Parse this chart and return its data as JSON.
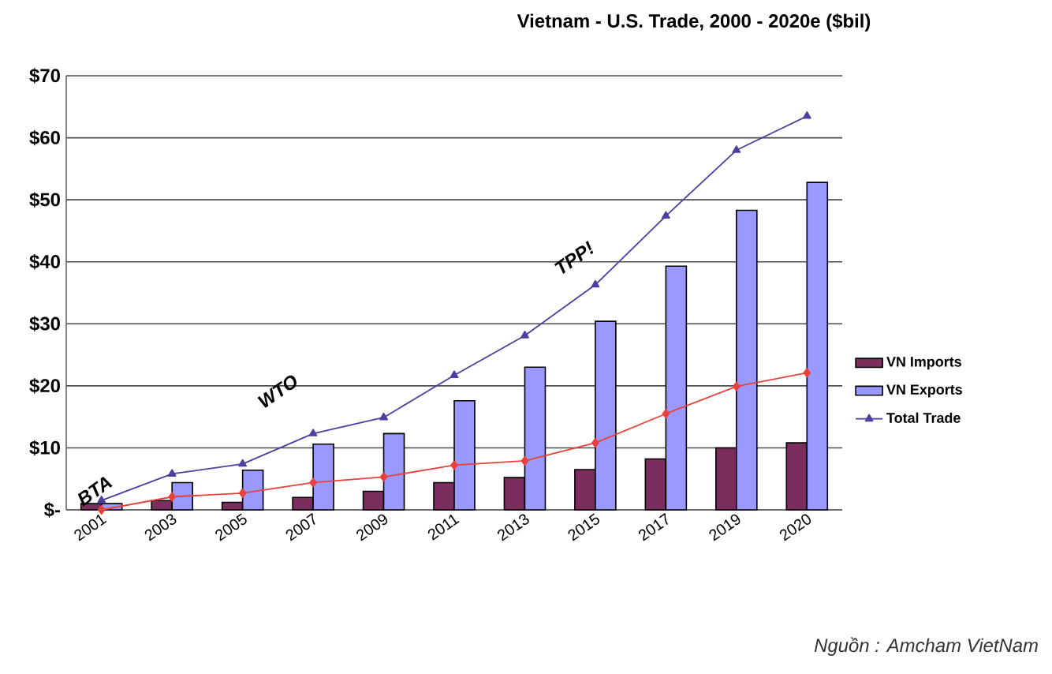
{
  "chart_data": {
    "type": "bar",
    "title": "Vietnam - U.S. Trade, 2000 - 2020e ($bil)",
    "categories": [
      "2001",
      "2003",
      "2005",
      "2007",
      "2009",
      "2011",
      "2013",
      "2015",
      "2017",
      "2019",
      "2020"
    ],
    "series": [
      {
        "name": "VN Imports",
        "color": "#7b2d5e",
        "values": [
          1.0,
          1.5,
          1.2,
          2.0,
          3.0,
          4.4,
          5.2,
          6.5,
          8.2,
          10.0,
          10.8
        ]
      },
      {
        "name": "VN Exports",
        "color": "#9999ff",
        "values": [
          1.0,
          4.4,
          6.4,
          10.6,
          12.3,
          17.6,
          23.0,
          30.4,
          39.3,
          48.3,
          52.8
        ]
      },
      {
        "name": "Total Trade",
        "type": "line",
        "marker": "triangle",
        "color": "#4b3fa0",
        "values": [
          1.5,
          5.8,
          7.4,
          12.3,
          14.9,
          21.7,
          28.1,
          36.3,
          47.4,
          58.0,
          63.5
        ]
      },
      {
        "type": "line",
        "marker": "diamond",
        "color": "#e8413c",
        "values": [
          0.0,
          2.1,
          2.7,
          4.4,
          5.3,
          7.2,
          7.9,
          10.8,
          15.5,
          19.9,
          22.1
        ]
      }
    ],
    "ylim": [
      0,
      70
    ],
    "yticks": [
      {
        "value": 0,
        "label": "$-"
      },
      {
        "value": 10,
        "label": "$10"
      },
      {
        "value": 20,
        "label": "$20"
      },
      {
        "value": 30,
        "label": "$30"
      },
      {
        "value": 40,
        "label": "$40"
      },
      {
        "value": 50,
        "label": "$50"
      },
      {
        "value": 60,
        "label": "$60"
      },
      {
        "value": 70,
        "label": "$70"
      }
    ],
    "grid": "y",
    "legend": "right",
    "annotations": [
      "BTA",
      "WTO",
      "TPP!",
      "Nguồn : Amcham VietNam"
    ]
  }
}
